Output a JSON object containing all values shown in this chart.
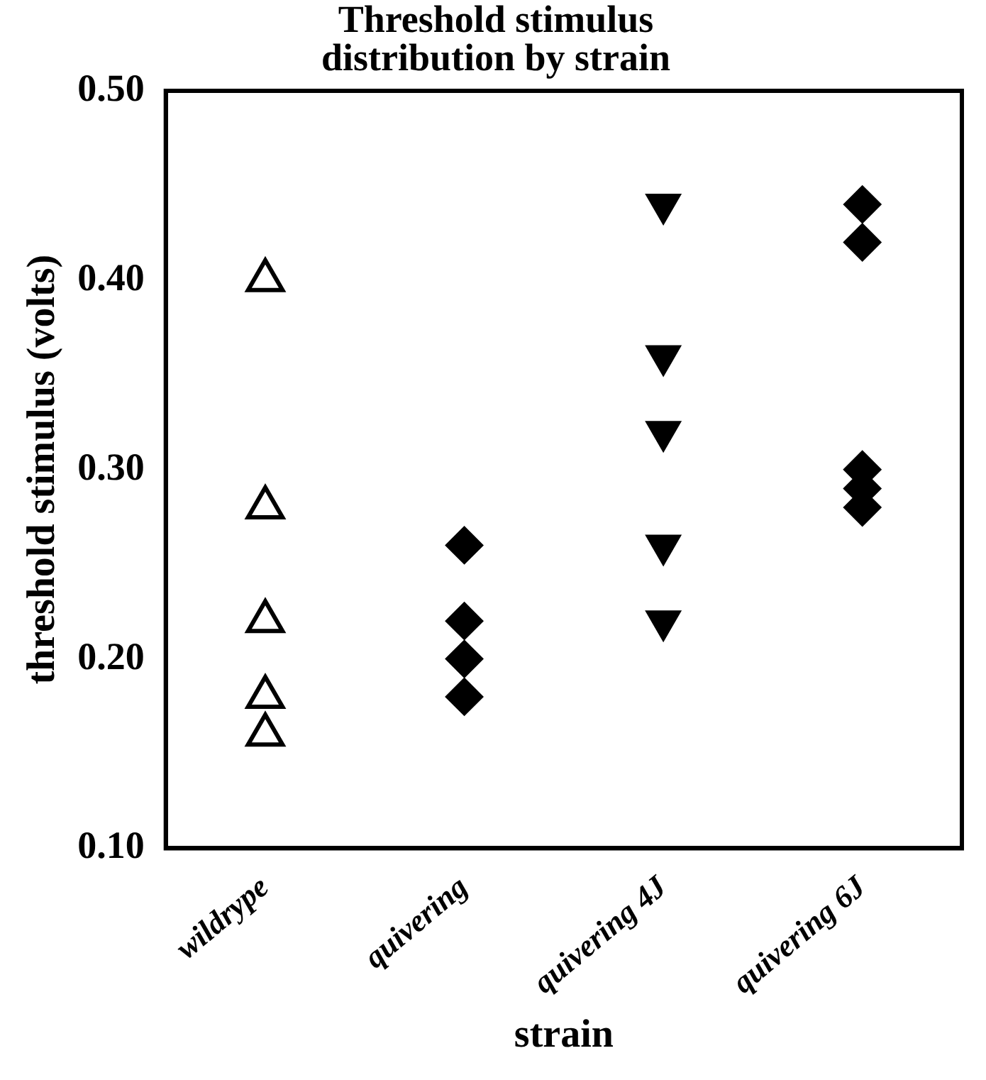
{
  "chart_data": {
    "type": "scatter",
    "title": "Threshold stimulus\ndistribution by strain",
    "xlabel": "strain",
    "ylabel": "threshold stimulus (volts)",
    "categories": [
      "wildrype",
      "quivering",
      "quivering 4J",
      "quivering 6J"
    ],
    "ylim": [
      0.1,
      0.5
    ],
    "yticks": [
      {
        "value": 0.1,
        "label": "0.10"
      },
      {
        "value": 0.2,
        "label": "0.20"
      },
      {
        "value": 0.3,
        "label": "0.30"
      },
      {
        "value": 0.4,
        "label": "0.40"
      },
      {
        "value": 0.5,
        "label": "0.50"
      }
    ],
    "grid": false,
    "legend": false,
    "series": [
      {
        "color": "#000000",
        "marker": "triangle",
        "x": [
          "wildrype",
          "wildrype",
          "wildrype",
          "wildrype",
          "wildrype"
        ],
        "values": [
          0.4,
          0.28,
          0.22,
          0.18,
          0.16
        ]
      },
      {
        "color": "#000000",
        "marker": "diamond",
        "x": [
          "quivering",
          "quivering",
          "quivering",
          "quivering"
        ],
        "values": [
          0.26,
          0.22,
          0.2,
          0.18
        ]
      },
      {
        "color": "#000000",
        "marker": "triangle",
        "x": [
          "quivering 4J",
          "quivering 4J",
          "quivering 4J",
          "quivering 4J",
          "quivering 4J"
        ],
        "values": [
          0.44,
          0.36,
          0.32,
          0.26,
          0.22
        ]
      },
      {
        "color": "#000000",
        "marker": "diamond",
        "x": [
          "quivering 6J",
          "quivering 6J",
          "quivering 6J",
          "quivering 6J",
          "quivering 6J"
        ],
        "values": [
          0.44,
          0.42,
          0.3,
          0.29,
          0.28
        ]
      }
    ]
  }
}
